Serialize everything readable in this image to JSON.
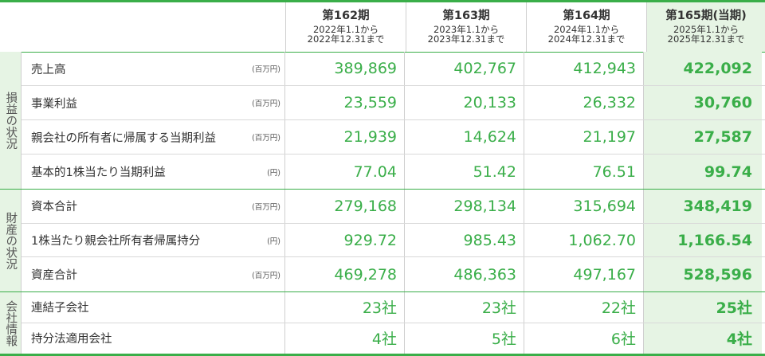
{
  "periods": [
    {
      "name": "第162期",
      "from": "2022年1.1から",
      "to": "2022年12.31まで"
    },
    {
      "name": "第163期",
      "from": "2023年1.1から",
      "to": "2023年12.31まで"
    },
    {
      "name": "第164期",
      "from": "2024年1.1から",
      "to": "2024年12.31まで"
    },
    {
      "name": "第165期(当期)",
      "from": "2025年1.1から",
      "to": "2025年12.31まで"
    }
  ],
  "sections": [
    {
      "label": "損益の状況",
      "rows": [
        {
          "name": "売上高",
          "unit": "(百万円)",
          "values": [
            "389,869",
            "402,767",
            "412,943",
            "422,092"
          ]
        },
        {
          "name": "事業利益",
          "unit": "(百万円)",
          "values": [
            "23,559",
            "20,133",
            "26,332",
            "30,760"
          ]
        },
        {
          "name": "親会社の所有者に帰属する当期利益",
          "unit": "(百万円)",
          "values": [
            "21,939",
            "14,624",
            "21,197",
            "27,587"
          ]
        },
        {
          "name": "基本的1株当たり当期利益",
          "unit": "(円)",
          "values": [
            "77.04",
            "51.42",
            "76.51",
            "99.74"
          ]
        }
      ]
    },
    {
      "label": "財産の状況",
      "rows": [
        {
          "name": "資本合計",
          "unit": "(百万円)",
          "values": [
            "279,168",
            "298,134",
            "315,694",
            "348,419"
          ]
        },
        {
          "name": "1株当たり親会社所有者帰属持分",
          "unit": "(円)",
          "values": [
            "929.72",
            "985.43",
            "1,062.70",
            "1,166.54"
          ]
        },
        {
          "name": "資産合計",
          "unit": "(百万円)",
          "values": [
            "469,278",
            "486,363",
            "497,167",
            "528,596"
          ]
        }
      ]
    },
    {
      "label": "会社情報",
      "rows": [
        {
          "name": "連結子会社",
          "unit": "",
          "values": [
            "23社",
            "23社",
            "22社",
            "25社"
          ]
        },
        {
          "name": "持分法適用会社",
          "unit": "",
          "values": [
            "4社",
            "5社",
            "6社",
            "4社"
          ]
        }
      ]
    }
  ],
  "colors": {
    "accent": "#3aae49",
    "current_bg": "#e6f4e4"
  }
}
